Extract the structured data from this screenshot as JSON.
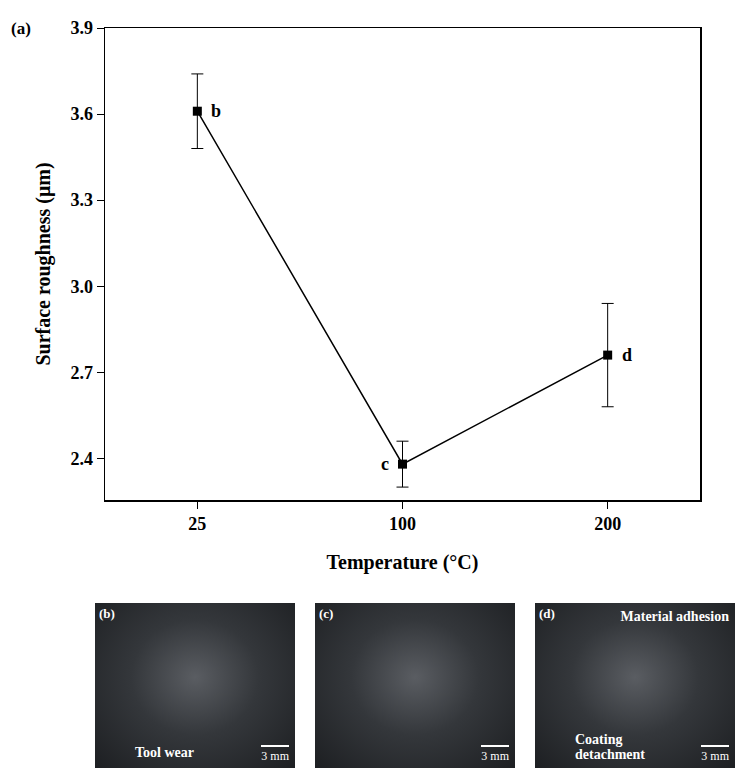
{
  "chart_data": {
    "type": "line",
    "title": "(a)",
    "x_label": "Temperature (°C)",
    "y_label": "Surface roughness (μm)",
    "categories": [
      "25",
      "100",
      "200"
    ],
    "values": [
      3.61,
      2.38,
      2.76
    ],
    "errors": [
      0.13,
      0.08,
      0.18
    ],
    "color": "#000000",
    "marker": "square",
    "line_style": "solid",
    "ylim": [
      2.255,
      3.9
    ],
    "yticks": [
      2.4,
      2.7,
      {
        "value": 3,
        "label": "3.0"
      },
      3.3,
      3.6,
      3.9
    ],
    "annotations": [
      {
        "category": "25",
        "text": "b"
      },
      {
        "category": "100",
        "text": "c"
      },
      {
        "category": "200",
        "text": "d"
      }
    ],
    "grid": false
  },
  "panels": [
    {
      "label": "(b)",
      "notes": [
        "Tool wear"
      ],
      "scale": "3 mm"
    },
    {
      "label": "(c)",
      "notes": [],
      "scale": "3 mm"
    },
    {
      "label": "(d)",
      "notes": [
        "Material adhesion",
        "Coating detachment"
      ],
      "scale": "3 mm"
    }
  ]
}
